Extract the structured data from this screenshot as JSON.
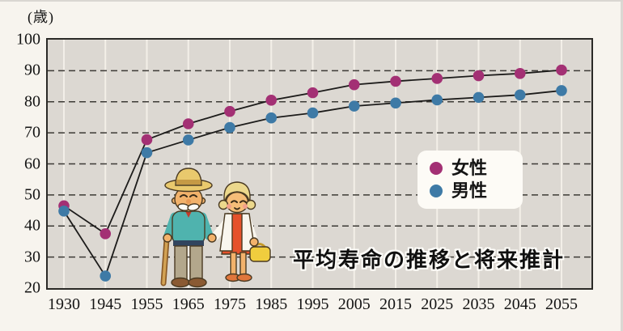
{
  "chart_data": {
    "type": "line",
    "title": "平均寿命の推移と将来推計",
    "unit_label": "(歳)",
    "xlabel": "",
    "ylabel": "",
    "categories": [
      "1930",
      "1945",
      "1955",
      "1965",
      "1975",
      "1985",
      "1995",
      "2005",
      "2015",
      "2025",
      "2035",
      "2045",
      "2055"
    ],
    "series": [
      {
        "name": "女性",
        "color": "#a33074",
        "values": [
          46.5,
          37.5,
          67.8,
          72.9,
          76.9,
          80.5,
          82.9,
          85.5,
          86.6,
          87.5,
          88.4,
          89.1,
          90.2
        ]
      },
      {
        "name": "男性",
        "color": "#3e7aa6",
        "values": [
          44.8,
          23.9,
          63.6,
          67.7,
          71.7,
          74.8,
          76.4,
          78.6,
          79.6,
          80.6,
          81.4,
          82.2,
          83.6
        ]
      }
    ],
    "ylim": [
      20,
      100
    ],
    "yticks": [
      20,
      30,
      40,
      50,
      60,
      70,
      80,
      90,
      100
    ],
    "line_color": "#1c1b1a",
    "grid": "horizontal dashed dark gridlines every 10; vertical solid white line at each year",
    "legend_position": "inside upper-right",
    "plot_background": "#dcd8d2",
    "page_background": "#f7f4ee",
    "illustration": "elderly-couple cartoon inside plot area"
  }
}
